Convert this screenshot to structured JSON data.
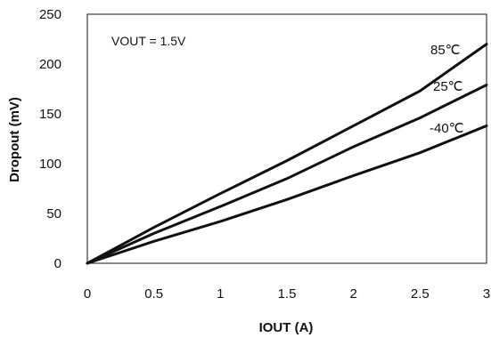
{
  "chart_data": {
    "type": "line",
    "title": "",
    "annotation": "VOUT = 1.5V",
    "xlabel": "IOUT (A)",
    "ylabel": "Dropout (mV)",
    "xlim": [
      0,
      3
    ],
    "ylim": [
      0,
      250
    ],
    "x_ticks": [
      "0",
      "0.5",
      "1",
      "1.5",
      "2",
      "2.5",
      "3"
    ],
    "y_ticks": [
      "0",
      "50",
      "100",
      "150",
      "200",
      "250"
    ],
    "grid": true,
    "legend": "labels at line ends",
    "series": [
      {
        "name": "85℃",
        "color": "#111111",
        "x": [
          0,
          0.5,
          1,
          1.5,
          2,
          2.5,
          3
        ],
        "y": [
          0,
          36,
          70,
          103,
          138,
          173,
          220
        ]
      },
      {
        "name": "25℃",
        "color": "#111111",
        "x": [
          0,
          0.5,
          1,
          1.5,
          2,
          2.5,
          3
        ],
        "y": [
          0,
          30,
          57,
          85,
          117,
          146,
          179
        ]
      },
      {
        "name": "-40℃",
        "color": "#111111",
        "x": [
          0,
          0.5,
          1,
          1.5,
          2,
          2.5,
          3
        ],
        "y": [
          0,
          22,
          42,
          64,
          88,
          111,
          138
        ]
      }
    ]
  }
}
